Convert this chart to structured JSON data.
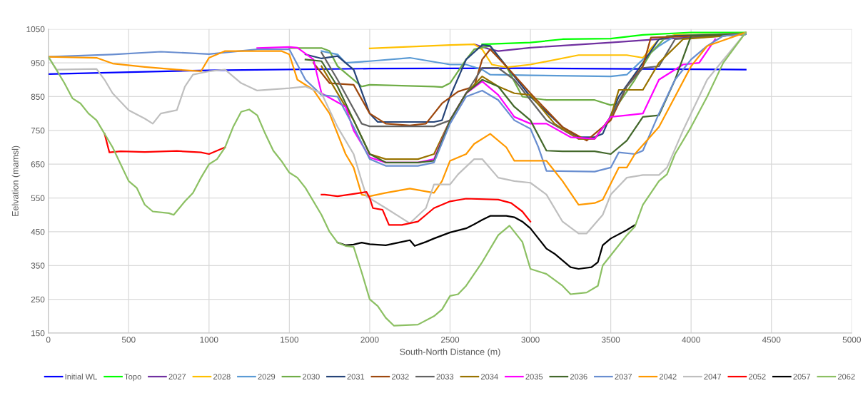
{
  "chart_data": {
    "type": "line",
    "xlabel": "South-North Distance (m)",
    "ylabel": "Eelvation (mamsl)",
    "xlim": [
      0,
      5000
    ],
    "xticks": [
      0,
      500,
      1000,
      1500,
      2000,
      2500,
      3000,
      3500,
      4000,
      4500,
      5000
    ],
    "ylim": [
      150,
      1050
    ],
    "yticks": [
      150,
      250,
      350,
      450,
      550,
      650,
      750,
      850,
      950,
      1050
    ],
    "grid": true,
    "legend": "bottom",
    "marker": "none",
    "line_style": "solid",
    "series": [
      {
        "name": "Initial WL",
        "color": "#0000ff",
        "x": [
          0,
          1000,
          2000,
          3000,
          4340
        ],
        "values": [
          917,
          928,
          933,
          934,
          930
        ]
      },
      {
        "name": "Topo",
        "color": "#00ff00",
        "x": [
          2700,
          3000,
          3200,
          3500,
          3700,
          4000,
          4340
        ],
        "values": [
          1005,
          1010,
          1020,
          1022,
          1033,
          1040,
          1040
        ]
      },
      {
        "name": "2027",
        "color": "#7030a0",
        "x": [
          2650,
          2750,
          2800,
          3000,
          3500,
          3800,
          4000,
          4340
        ],
        "values": [
          1005,
          990,
          985,
          995,
          1010,
          1020,
          1025,
          1035
        ]
      },
      {
        "name": "2028",
        "color": "#ffc000",
        "x": [
          2000,
          2500,
          2650,
          2700,
          2760,
          2850,
          3000,
          3300,
          3600,
          3700,
          3800,
          3900,
          4340
        ],
        "values": [
          993,
          1003,
          1005,
          990,
          945,
          937,
          945,
          973,
          973,
          965,
          1020,
          1033,
          1035
        ]
      },
      {
        "name": "2029",
        "color": "#5b9bd5",
        "x": [
          1700,
          1800,
          1850,
          2000,
          2250,
          2500,
          2600,
          2700,
          2750,
          3000,
          3500,
          3600,
          3700,
          3800,
          3900,
          4340
        ],
        "values": [
          985,
          975,
          950,
          955,
          965,
          945,
          945,
          930,
          915,
          913,
          910,
          915,
          960,
          1000,
          1030,
          1035
        ]
      },
      {
        "name": "2030",
        "color": "#70ad47",
        "x": [
          1500,
          1700,
          1750,
          1800,
          1950,
          2000,
          2400,
          2450,
          2500,
          2600,
          2650,
          2750,
          2850,
          2950,
          3100,
          3400,
          3500,
          3550,
          3650,
          3750,
          3850,
          4340
        ],
        "values": [
          994,
          994,
          985,
          940,
          880,
          885,
          880,
          878,
          890,
          960,
          990,
          1000,
          940,
          850,
          840,
          840,
          825,
          830,
          900,
          980,
          1030,
          1038
        ]
      },
      {
        "name": "2031",
        "color": "#264478",
        "x": [
          1600,
          1700,
          1800,
          1900,
          2000,
          2050,
          2400,
          2450,
          2500,
          2600,
          2700,
          2750,
          2850,
          3000,
          3200,
          3300,
          3400,
          3450,
          3550,
          3700,
          3800,
          3900,
          4340
        ],
        "values": [
          975,
          963,
          970,
          930,
          800,
          775,
          775,
          780,
          850,
          960,
          1003,
          1000,
          940,
          850,
          760,
          730,
          730,
          740,
          850,
          950,
          1020,
          1030,
          1035
        ]
      },
      {
        "name": "2032",
        "color": "#9e480e",
        "x": [
          1650,
          1750,
          1900,
          2000,
          2100,
          2250,
          2350,
          2450,
          2550,
          2650,
          2700,
          2750,
          2850,
          3000,
          3200,
          3350,
          3500,
          3600,
          3700,
          3750,
          4340
        ],
        "values": [
          950,
          890,
          885,
          800,
          770,
          765,
          770,
          830,
          865,
          880,
          960,
          990,
          940,
          860,
          760,
          720,
          780,
          880,
          940,
          1025,
          1035
        ]
      },
      {
        "name": "2033",
        "color": "#636363",
        "x": [
          1700,
          1800,
          1950,
          2000,
          2400,
          2500,
          2600,
          2700,
          2800,
          2900,
          3100,
          3300,
          3400,
          3500,
          3600,
          3700,
          3800,
          3900,
          4340
        ],
        "values": [
          980,
          900,
          770,
          762,
          762,
          780,
          860,
          935,
          935,
          900,
          780,
          725,
          725,
          790,
          880,
          935,
          940,
          1020,
          1035
        ]
      },
      {
        "name": "2034",
        "color": "#997300",
        "x": [
          1700,
          1900,
          2000,
          2100,
          2300,
          2400,
          2500,
          2600,
          2700,
          2800,
          2900,
          3000,
          3150,
          3300,
          3400,
          3500,
          3550,
          3700,
          3800,
          3950,
          4340
        ],
        "values": [
          940,
          780,
          680,
          665,
          665,
          680,
          780,
          860,
          910,
          880,
          860,
          855,
          770,
          725,
          725,
          790,
          870,
          870,
          950,
          1020,
          1035
        ]
      },
      {
        "name": "2035",
        "color": "#ff00ff",
        "x": [
          1300,
          1500,
          1550,
          1650,
          1700,
          1850,
          1900,
          2000,
          2100,
          2300,
          2400,
          2500,
          2600,
          2700,
          2800,
          2900,
          3000,
          3100,
          3250,
          3400,
          3500,
          3600,
          3700,
          3800,
          3950,
          4050,
          4150
        ],
        "values": [
          994,
          997,
          995,
          960,
          860,
          820,
          750,
          670,
          655,
          655,
          665,
          780,
          860,
          895,
          855,
          790,
          770,
          770,
          730,
          725,
          790,
          795,
          800,
          900,
          945,
          950,
          1020
        ]
      },
      {
        "name": "2036",
        "color": "#43682b",
        "x": [
          1600,
          1700,
          1800,
          1900,
          2000,
          2100,
          2300,
          2400,
          2500,
          2600,
          2700,
          2800,
          2900,
          3000,
          3100,
          3200,
          3400,
          3500,
          3600,
          3700,
          3800,
          3900,
          4000,
          4340
        ],
        "values": [
          960,
          955,
          880,
          780,
          680,
          655,
          655,
          660,
          780,
          860,
          900,
          880,
          820,
          780,
          690,
          688,
          688,
          680,
          720,
          790,
          795,
          900,
          1030,
          1035
        ]
      },
      {
        "name": "2037",
        "color": "#698ed0",
        "x": [
          0,
          400,
          700,
          1000,
          1300,
          1500,
          1600,
          1700,
          1800,
          1900,
          2000,
          2100,
          2300,
          2400,
          2500,
          2600,
          2700,
          2800,
          2900,
          3000,
          3050,
          3100,
          3400,
          3500,
          3550,
          3650,
          3700,
          3800,
          3900,
          4000,
          4100,
          4200,
          4340
        ],
        "values": [
          968,
          975,
          983,
          976,
          990,
          990,
          900,
          855,
          850,
          760,
          665,
          645,
          645,
          655,
          770,
          850,
          868,
          840,
          780,
          755,
          700,
          630,
          628,
          640,
          685,
          680,
          690,
          800,
          900,
          960,
          1000,
          1030,
          1035
        ]
      },
      {
        "name": "2042",
        "color": "#ff9900",
        "x": [
          0,
          300,
          400,
          600,
          800,
          950,
          1000,
          1100,
          1450,
          1500,
          1550,
          1650,
          1750,
          1850,
          1900,
          1950,
          2000,
          2100,
          2250,
          2400,
          2450,
          2500,
          2600,
          2650,
          2750,
          2850,
          2900,
          3100,
          3200,
          3300,
          3400,
          3450,
          3550,
          3600,
          3650,
          3800,
          3900,
          4000,
          4100,
          4340
        ],
        "values": [
          968,
          965,
          948,
          938,
          930,
          925,
          965,
          985,
          985,
          975,
          900,
          870,
          800,
          680,
          640,
          560,
          555,
          565,
          578,
          565,
          600,
          660,
          680,
          710,
          740,
          700,
          660,
          660,
          600,
          530,
          535,
          545,
          640,
          640,
          680,
          760,
          850,
          940,
          1000,
          1040
        ]
      },
      {
        "name": "2047",
        "color": "#bfbfbf",
        "x": [
          0,
          50,
          300,
          350,
          400,
          500,
          600,
          650,
          700,
          800,
          850,
          900,
          1000,
          1100,
          1200,
          1300,
          1500,
          1600,
          1700,
          1800,
          1900,
          1950,
          1980,
          2100,
          2250,
          2350,
          2400,
          2500,
          2550,
          2650,
          2700,
          2800,
          2900,
          3000,
          3100,
          3200,
          3300,
          3350,
          3450,
          3500,
          3600,
          3700,
          3800,
          3850,
          3950,
          4100,
          4340
        ],
        "values": [
          968,
          930,
          932,
          900,
          860,
          810,
          785,
          770,
          800,
          810,
          880,
          915,
          925,
          930,
          890,
          868,
          875,
          880,
          860,
          760,
          680,
          600,
          555,
          520,
          475,
          520,
          590,
          590,
          620,
          665,
          665,
          610,
          600,
          595,
          560,
          480,
          445,
          445,
          500,
          560,
          610,
          618,
          618,
          640,
          750,
          900,
          1040
        ]
      },
      {
        "name": "2052",
        "color": "#ff0000",
        "x": [
          350,
          380,
          450,
          600,
          800,
          950,
          1000,
          1050,
          1100,
          1400,
          1700,
          1720,
          1800,
          1900,
          1980,
          2000,
          2020,
          2080,
          2120,
          2200,
          2300,
          2350,
          2400,
          2500,
          2600,
          2800,
          2880,
          2950,
          3000
        ],
        "values": [
          740,
          685,
          688,
          686,
          689,
          685,
          680,
          690,
          700,
          null,
          560,
          560,
          555,
          562,
          568,
          550,
          520,
          515,
          470,
          470,
          480,
          500,
          520,
          540,
          548,
          545,
          535,
          510,
          480
        ]
      },
      {
        "name": "2057",
        "color": "#000000",
        "x": [
          1800,
          1850,
          1900,
          1950,
          2000,
          2100,
          2200,
          2250,
          2280,
          2350,
          2400,
          2500,
          2600,
          2650,
          2700,
          2750,
          2850,
          2900,
          2950,
          3000,
          3050,
          3100,
          3150,
          3200,
          3250,
          3300,
          3380,
          3420,
          3450,
          3500,
          3600,
          3650
        ],
        "values": [
          418,
          410,
          412,
          418,
          413,
          410,
          420,
          425,
          408,
          420,
          430,
          448,
          460,
          472,
          485,
          497,
          497,
          493,
          480,
          460,
          430,
          400,
          385,
          365,
          345,
          340,
          345,
          360,
          410,
          430,
          455,
          470
        ]
      },
      {
        "name": "2062",
        "color": "#8cc063",
        "x": [
          0,
          50,
          100,
          150,
          200,
          250,
          300,
          350,
          400,
          450,
          500,
          550,
          600,
          650,
          750,
          780,
          850,
          900,
          950,
          1000,
          1050,
          1100,
          1150,
          1200,
          1250,
          1300,
          1350,
          1400,
          1450,
          1500,
          1550,
          1600,
          1700,
          1750,
          1800,
          1850,
          1900,
          1950,
          2000,
          2050,
          2100,
          2150,
          2300,
          2400,
          2450,
          2500,
          2550,
          2600,
          2700,
          2800,
          2870,
          2950,
          3000,
          3100,
          3200,
          3250,
          3350,
          3420,
          3450,
          3500,
          3600,
          3650,
          3700,
          3800,
          3850,
          3900,
          4000,
          4100,
          4200,
          4340
        ],
        "values": [
          968,
          930,
          890,
          845,
          830,
          800,
          780,
          740,
          700,
          650,
          600,
          580,
          530,
          510,
          505,
          500,
          540,
          565,
          610,
          650,
          665,
          700,
          760,
          805,
          812,
          795,
          740,
          690,
          660,
          625,
          610,
          580,
          500,
          450,
          418,
          408,
          405,
          330,
          250,
          230,
          195,
          172,
          175,
          200,
          220,
          260,
          265,
          290,
          360,
          440,
          468,
          420,
          340,
          325,
          290,
          265,
          270,
          290,
          350,
          380,
          440,
          465,
          530,
          600,
          620,
          680,
          760,
          850,
          950,
          1040
        ]
      }
    ]
  }
}
